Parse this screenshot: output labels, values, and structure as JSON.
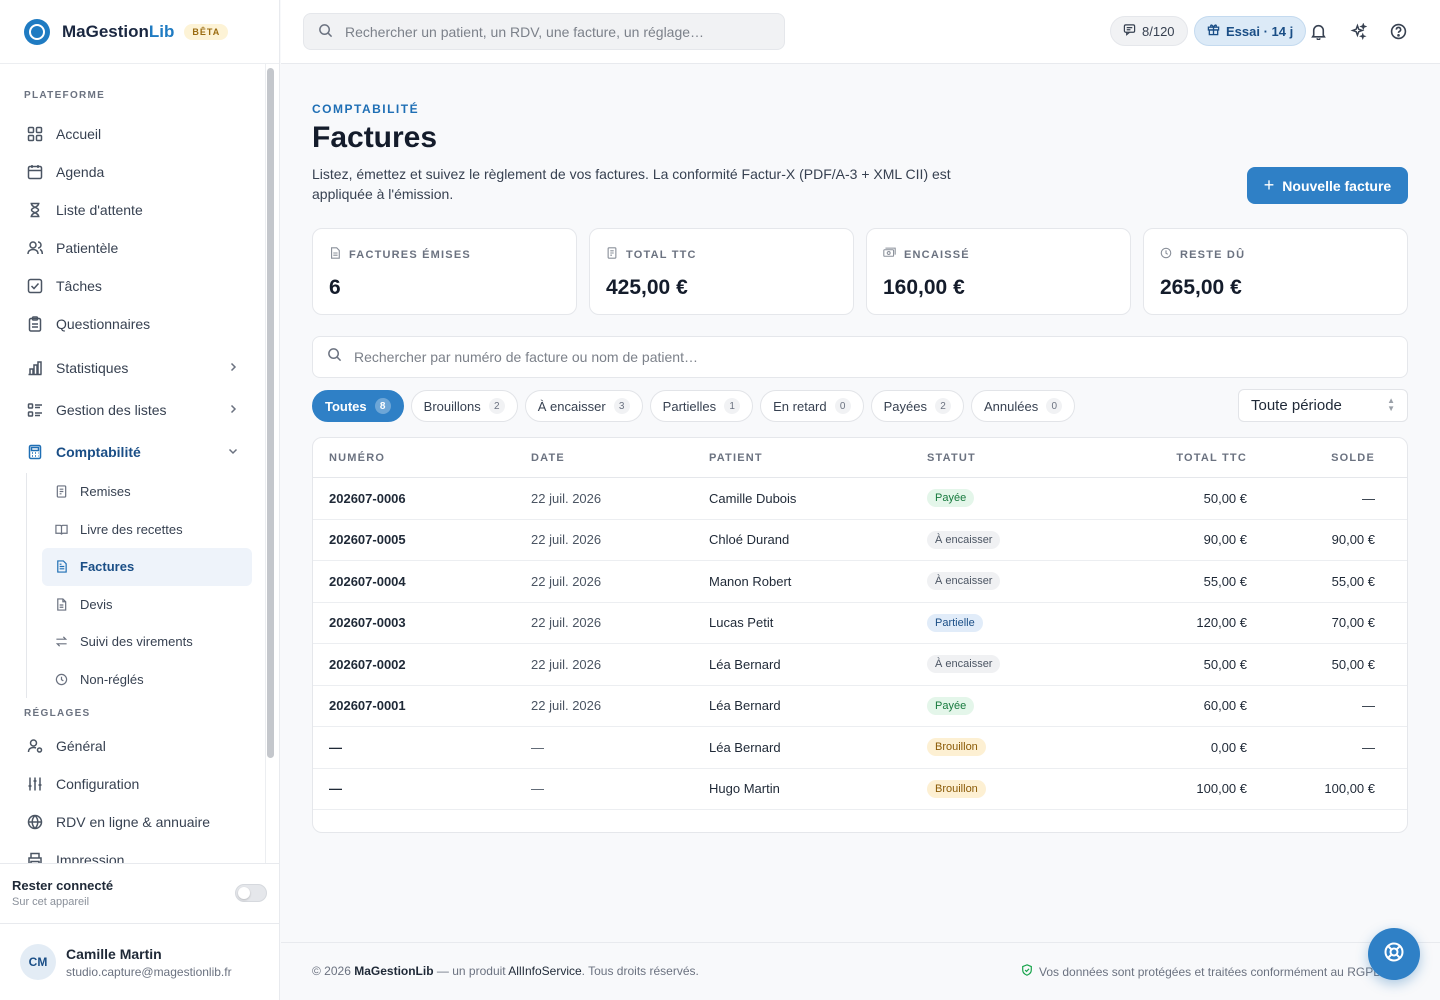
{
  "brand": {
    "name_main": "MaGestion",
    "name_accent": "Lib",
    "badge": "BÊTA"
  },
  "sidebar": {
    "section_platform": "PLATEFORME",
    "items": [
      {
        "label": "Accueil",
        "icon": "grid-icon"
      },
      {
        "label": "Agenda",
        "icon": "calendar-icon"
      },
      {
        "label": "Liste d'attente",
        "icon": "hourglass-icon"
      },
      {
        "label": "Patientèle",
        "icon": "users-icon"
      },
      {
        "label": "Tâches",
        "icon": "checkbox-icon"
      },
      {
        "label": "Questionnaires",
        "icon": "clipboard-icon"
      }
    ],
    "groups": [
      {
        "label": "Statistiques",
        "icon": "bar-chart-icon"
      },
      {
        "label": "Gestion des listes",
        "icon": "list-icon"
      },
      {
        "label": "Comptabilité",
        "icon": "calculator-icon"
      }
    ],
    "accounting_sub": [
      {
        "label": "Remises",
        "icon": "receipt-icon"
      },
      {
        "label": "Livre des recettes",
        "icon": "book-icon"
      },
      {
        "label": "Factures",
        "icon": "invoice-icon"
      },
      {
        "label": "Devis",
        "icon": "document-icon"
      },
      {
        "label": "Suivi des virements",
        "icon": "transfer-icon"
      },
      {
        "label": "Non-réglés",
        "icon": "clock-icon"
      }
    ],
    "section_settings": "RÉGLAGES",
    "settings": [
      {
        "label": "Général",
        "icon": "user-gear-icon"
      },
      {
        "label": "Configuration",
        "icon": "sliders-icon"
      },
      {
        "label": "RDV en ligne & annuaire",
        "icon": "globe-icon"
      },
      {
        "label": "Impression",
        "icon": "printer-icon"
      }
    ],
    "stay_connected": {
      "title": "Rester connecté",
      "subtitle": "Sur cet appareil"
    },
    "user": {
      "initials": "CM",
      "name": "Camille Martin",
      "email": "studio.capture@magestionlib.fr"
    }
  },
  "topbar": {
    "search_placeholder": "Rechercher un patient, un RDV, une facture, un réglage…",
    "sms_count": "8/120",
    "trial": "Essai · 14 j"
  },
  "page": {
    "eyebrow": "COMPTABILITÉ",
    "title": "Factures",
    "description": "Listez, émettez et suivez le règlement de vos factures. La conformité Factur-X (PDF/A-3 + XML CII) est appliquée à l'émission.",
    "new_button": "Nouvelle facture"
  },
  "kpis": [
    {
      "label": "FACTURES ÉMISES",
      "value": "6",
      "icon": "invoice-icon"
    },
    {
      "label": "TOTAL TTC",
      "value": "425,00 €",
      "icon": "receipt-icon"
    },
    {
      "label": "ENCAISSÉ",
      "value": "160,00 €",
      "icon": "cash-icon"
    },
    {
      "label": "RESTE DÛ",
      "value": "265,00 €",
      "icon": "clock-icon"
    }
  ],
  "list": {
    "search_placeholder": "Rechercher par numéro de facture ou nom de patient…",
    "filters": [
      {
        "label": "Toutes",
        "count": "8"
      },
      {
        "label": "Brouillons",
        "count": "2"
      },
      {
        "label": "À encaisser",
        "count": "3"
      },
      {
        "label": "Partielles",
        "count": "1"
      },
      {
        "label": "En retard",
        "count": "0"
      },
      {
        "label": "Payées",
        "count": "2"
      },
      {
        "label": "Annulées",
        "count": "0"
      }
    ],
    "period": "Toute période"
  },
  "table": {
    "headers": {
      "number": "NUMÉRO",
      "date": "DATE",
      "patient": "PATIENT",
      "status": "STATUT",
      "total": "TOTAL TTC",
      "balance": "SOLDE"
    },
    "rows": [
      {
        "number": "202607-0006",
        "date": "22 juil. 2026",
        "patient": "Camille Dubois",
        "status": "Payée",
        "kind": "paid",
        "total": "50,00 €",
        "balance": "—"
      },
      {
        "number": "202607-0005",
        "date": "22 juil. 2026",
        "patient": "Chloé Durand",
        "status": "À encaisser",
        "kind": "due",
        "total": "90,00 €",
        "balance": "90,00 €"
      },
      {
        "number": "202607-0004",
        "date": "22 juil. 2026",
        "patient": "Manon Robert",
        "status": "À encaisser",
        "kind": "due",
        "total": "55,00 €",
        "balance": "55,00 €"
      },
      {
        "number": "202607-0003",
        "date": "22 juil. 2026",
        "patient": "Lucas Petit",
        "status": "Partielle",
        "kind": "part",
        "total": "120,00 €",
        "balance": "70,00 €"
      },
      {
        "number": "202607-0002",
        "date": "22 juil. 2026",
        "patient": "Léa Bernard",
        "status": "À encaisser",
        "kind": "due",
        "total": "50,00 €",
        "balance": "50,00 €"
      },
      {
        "number": "202607-0001",
        "date": "22 juil. 2026",
        "patient": "Léa Bernard",
        "status": "Payée",
        "kind": "paid",
        "total": "60,00 €",
        "balance": "—"
      },
      {
        "number": "—",
        "date": "—",
        "patient": "Léa Bernard",
        "status": "Brouillon",
        "kind": "draft",
        "total": "0,00 €",
        "balance": "—"
      },
      {
        "number": "—",
        "date": "—",
        "patient": "Hugo Martin",
        "status": "Brouillon",
        "kind": "draft",
        "total": "100,00 €",
        "balance": "100,00 €"
      }
    ]
  },
  "footer": {
    "copyright_prefix": "© 2026",
    "brand": "MaGestionLib",
    "middle": "— un produit",
    "company": "AllInfoService",
    "suffix": ". Tous droits réservés.",
    "privacy": "Vos données sont protégées et traitées conformément au RGPD"
  },
  "colors": {
    "accent": "#2f80c6",
    "paid": "#177a3e",
    "draft": "#8a5a06"
  }
}
